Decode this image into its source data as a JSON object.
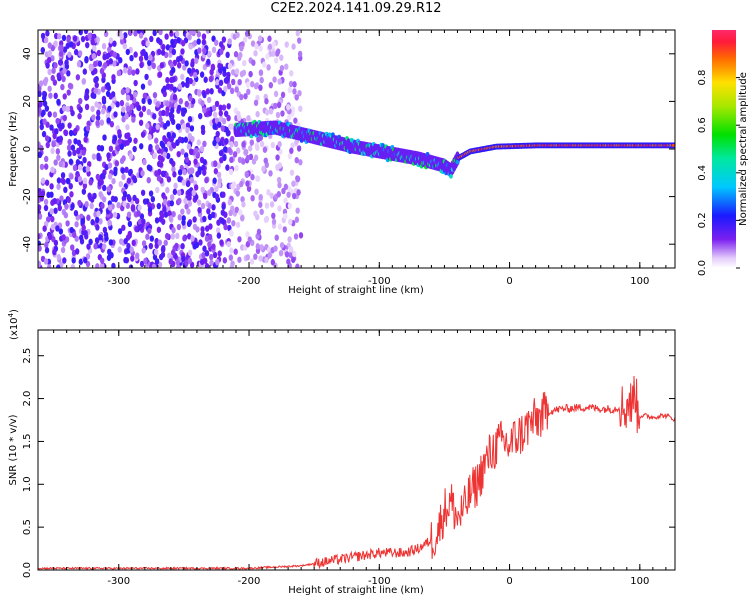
{
  "title": "C2E2.2024.141.09.29.R12",
  "colors": {
    "snr_line": "#ee3333",
    "axis": "#000000",
    "background": "#ffffff"
  },
  "chart_data": [
    {
      "type": "heatmap",
      "title": "C2E2.2024.141.09.29.R12",
      "xlabel": "Height of straight line (km)",
      "ylabel": "Frequency (Hz)",
      "xlim": [
        -362,
        127
      ],
      "ylim": [
        -50,
        50
      ],
      "x_ticks": [
        -300,
        -200,
        -100,
        0,
        100
      ],
      "x_tick_labels": [
        "-300",
        "-200",
        "-100",
        "0",
        "100"
      ],
      "y_ticks": [
        -40,
        -20,
        0,
        20,
        40
      ],
      "y_tick_labels": [
        "-40",
        "-20",
        "0",
        "20",
        "40"
      ],
      "colorbar": {
        "label": "Normalized spectral amplitude",
        "range": [
          0,
          1
        ],
        "ticks": [
          0.0,
          0.2,
          0.4,
          0.6,
          0.8
        ],
        "tick_labels": [
          "0.0",
          "0.2",
          "0.4",
          "0.6",
          "0.8"
        ]
      },
      "features": [
        {
          "name": "broadband noise region",
          "x_range": [
            -362,
            -215
          ],
          "freq_range": [
            -50,
            50
          ],
          "amplitude": 0.15
        },
        {
          "name": "scattered noise tail",
          "x_range": [
            -215,
            -160
          ],
          "freq_range": [
            -50,
            50
          ],
          "amplitude": 0.08
        },
        {
          "name": "signal track",
          "points": [
            [
              -210,
              8
            ],
            [
              -180,
              9
            ],
            [
              -150,
              5
            ],
            [
              -120,
              1
            ],
            [
              -90,
              -2
            ],
            [
              -70,
              -4
            ],
            [
              -50,
              -7
            ],
            [
              -45,
              -9
            ],
            [
              -40,
              -4
            ],
            [
              -30,
              -1
            ],
            [
              -10,
              1
            ],
            [
              20,
              1.5
            ],
            [
              60,
              1.5
            ],
            [
              100,
              1.5
            ],
            [
              127,
              1.5
            ]
          ]
        }
      ]
    },
    {
      "type": "line",
      "title": "",
      "xlabel": "Height of straight line (km)",
      "ylabel": "SNR (10 * v/v)",
      "multiplier_label": "(x10",
      "multiplier_exponent": "4",
      "multiplier_close": ")",
      "xlim": [
        -362,
        127
      ],
      "ylim": [
        0,
        2.8
      ],
      "x_ticks": [
        -300,
        -200,
        -100,
        0,
        100
      ],
      "x_tick_labels": [
        "-300",
        "-200",
        "-100",
        "0",
        "100"
      ],
      "y_ticks": [
        0.0,
        0.5,
        1.0,
        1.5,
        2.0,
        2.5
      ],
      "y_tick_labels": [
        "0.0",
        "0.5",
        "1.0",
        "1.5",
        "2.0",
        "2.5"
      ],
      "series": [
        {
          "name": "SNR",
          "x": [
            -362,
            -300,
            -250,
            -200,
            -160,
            -140,
            -120,
            -100,
            -80,
            -70,
            -60,
            -55,
            -50,
            -45,
            -40,
            -35,
            -30,
            -25,
            -20,
            -15,
            -10,
            -5,
            0,
            5,
            10,
            15,
            20,
            25,
            30,
            40,
            50,
            60,
            70,
            80,
            85,
            90,
            92,
            94,
            96,
            98,
            100,
            105,
            110,
            115,
            120,
            127
          ],
          "values": [
            0.02,
            0.02,
            0.02,
            0.02,
            0.05,
            0.1,
            0.15,
            0.2,
            0.2,
            0.25,
            0.35,
            0.45,
            0.7,
            0.8,
            0.6,
            0.7,
            0.9,
            1.0,
            1.2,
            1.35,
            1.45,
            1.5,
            1.45,
            1.55,
            1.6,
            1.7,
            1.75,
            1.8,
            1.85,
            1.88,
            1.89,
            1.9,
            1.88,
            1.88,
            1.9,
            1.9,
            2.0,
            1.85,
            2.2,
            1.85,
            1.8,
            1.8,
            1.78,
            1.8,
            1.8,
            1.76
          ]
        }
      ]
    }
  ]
}
